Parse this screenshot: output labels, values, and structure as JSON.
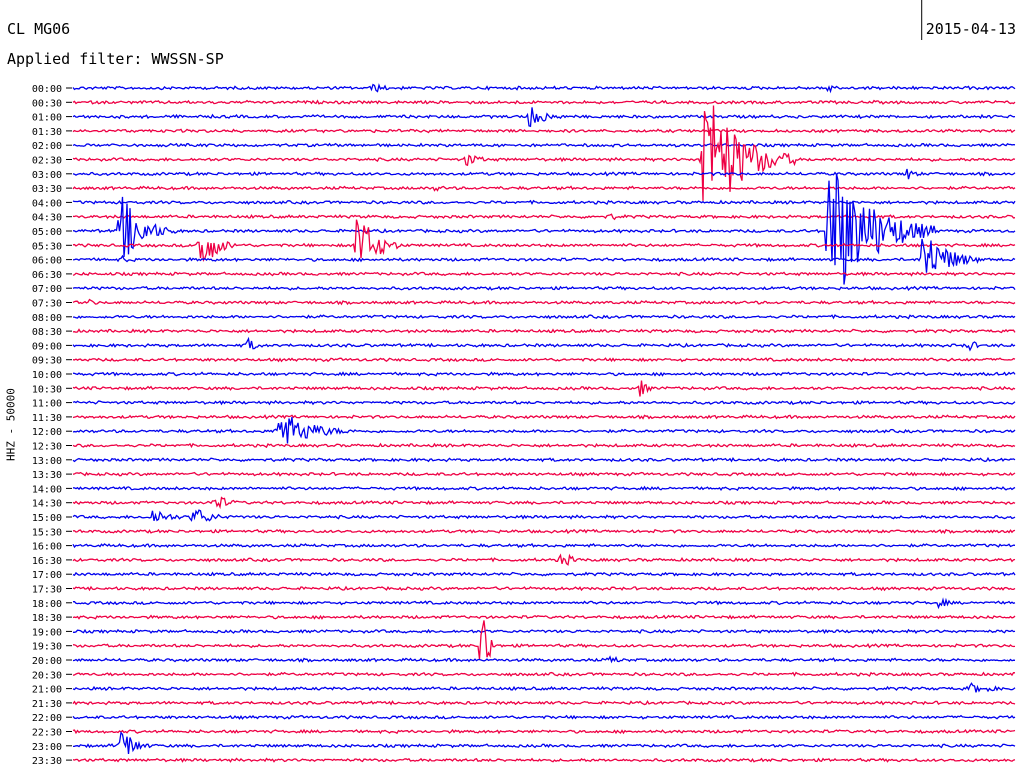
{
  "header": {
    "station": "CL MG06",
    "filter": "Applied filter: WWSSN-SP",
    "date": "2015-04-13"
  },
  "colors": {
    "blue": "#0000ee",
    "red": "#ee0044",
    "axis": "#000000"
  },
  "chart_data": {
    "type": "line",
    "title": "",
    "ylabel": "HHZ - 50000",
    "row_labels": [
      "00:00",
      "00:30",
      "01:00",
      "01:30",
      "02:00",
      "02:30",
      "03:00",
      "03:30",
      "04:00",
      "04:30",
      "05:00",
      "05:30",
      "06:00",
      "06:30",
      "07:00",
      "07:30",
      "08:00",
      "08:30",
      "09:00",
      "09:30",
      "10:00",
      "10:30",
      "11:00",
      "11:30",
      "12:00",
      "12:30",
      "13:00",
      "13:30",
      "14:00",
      "14:30",
      "15:00",
      "15:30",
      "16:00",
      "16:30",
      "17:00",
      "17:30",
      "18:00",
      "18:30",
      "19:00",
      "19:30",
      "20:00",
      "20:30",
      "21:00",
      "21:30",
      "22:00",
      "22:30",
      "23:00",
      "23:30"
    ],
    "row_color_cycle": [
      "blue",
      "red"
    ],
    "marker_line_minute": 27.0,
    "events": [
      {
        "row": 0,
        "minute": 9.5,
        "amp": 6,
        "dur": 1.2
      },
      {
        "row": 0,
        "minute": 24.0,
        "amp": 12,
        "dur": 0.4
      },
      {
        "row": 1,
        "minute": 14.0,
        "amp": 3,
        "dur": 0.6
      },
      {
        "row": 2,
        "minute": 14.5,
        "amp": 12,
        "dur": 1.5
      },
      {
        "row": 5,
        "minute": 12.5,
        "amp": 8,
        "dur": 1.2
      },
      {
        "row": 5,
        "minute": 20.0,
        "amp": 80,
        "dur": 3.0
      },
      {
        "row": 6,
        "minute": 26.5,
        "amp": 8,
        "dur": 0.8
      },
      {
        "row": 7,
        "minute": 11.5,
        "amp": 3,
        "dur": 1.5
      },
      {
        "row": 9,
        "minute": 17.0,
        "amp": 5,
        "dur": 1.0
      },
      {
        "row": 10,
        "minute": 1.5,
        "amp": 40,
        "dur": 1.8
      },
      {
        "row": 10,
        "minute": 24.0,
        "amp": 85,
        "dur": 3.5
      },
      {
        "row": 11,
        "minute": 4.0,
        "amp": 35,
        "dur": 1.2
      },
      {
        "row": 11,
        "minute": 9.0,
        "amp": 40,
        "dur": 1.5
      },
      {
        "row": 12,
        "minute": 1.5,
        "amp": 5,
        "dur": 0.8
      },
      {
        "row": 12,
        "minute": 27.0,
        "amp": 35,
        "dur": 2.0
      },
      {
        "row": 15,
        "minute": 0.5,
        "amp": 4,
        "dur": 0.8
      },
      {
        "row": 18,
        "minute": 5.5,
        "amp": 10,
        "dur": 0.8
      },
      {
        "row": 18,
        "minute": 28.5,
        "amp": 10,
        "dur": 0.5
      },
      {
        "row": 21,
        "minute": 18.0,
        "amp": 12,
        "dur": 0.6
      },
      {
        "row": 24,
        "minute": 6.5,
        "amp": 25,
        "dur": 2.5
      },
      {
        "row": 24,
        "minute": 30.5,
        "amp": 6,
        "dur": 0.6
      },
      {
        "row": 29,
        "minute": 4.5,
        "amp": 10,
        "dur": 1.2
      },
      {
        "row": 30,
        "minute": 2.5,
        "amp": 10,
        "dur": 1.5
      },
      {
        "row": 30,
        "minute": 3.8,
        "amp": 12,
        "dur": 1.5
      },
      {
        "row": 33,
        "minute": 15.5,
        "amp": 10,
        "dur": 1.0
      },
      {
        "row": 36,
        "minute": 27.5,
        "amp": 6,
        "dur": 1.0
      },
      {
        "row": 39,
        "minute": 13.0,
        "amp": 60,
        "dur": 0.5
      },
      {
        "row": 40,
        "minute": 17.0,
        "amp": 6,
        "dur": 1.0
      },
      {
        "row": 42,
        "minute": 28.5,
        "amp": 6,
        "dur": 2.0
      },
      {
        "row": 46,
        "minute": 1.5,
        "amp": 25,
        "dur": 1.0
      }
    ]
  }
}
